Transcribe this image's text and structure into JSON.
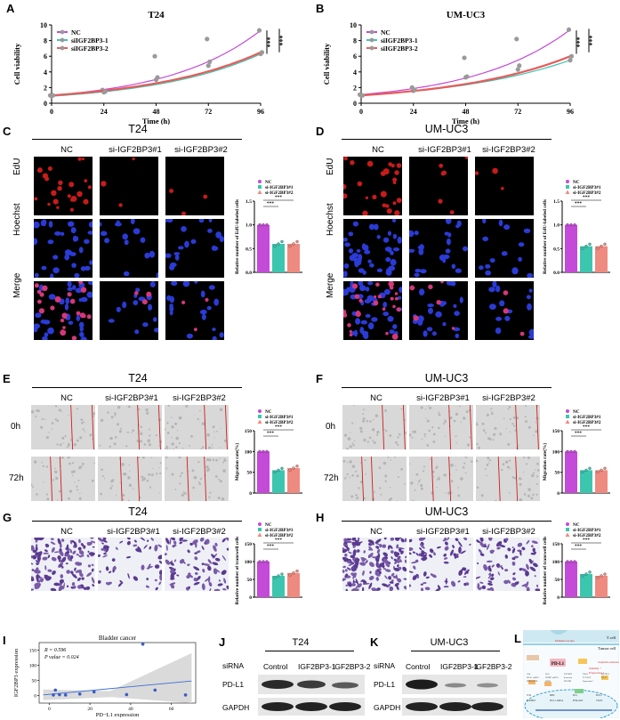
{
  "panels": {
    "A": {
      "letter": "A",
      "title": "T24",
      "xlabel": "Time (h)",
      "ylabel": "Cell viability",
      "legend": [
        "NC",
        "siIGF2BP3-1",
        "siIGF2BP3-2"
      ],
      "sig": [
        "***",
        "***"
      ],
      "xticks": [
        "0",
        "24",
        "48",
        "72",
        "96"
      ],
      "yticks": [
        "0",
        "2",
        "4",
        "6",
        "8",
        "10"
      ]
    },
    "B": {
      "letter": "B",
      "title": "UM-UC3",
      "xlabel": "Time (h)",
      "ylabel": "Cell viability",
      "legend": [
        "NC",
        "siIGF2BP3-1",
        "siIGF2BP3-2"
      ],
      "sig": [
        "***",
        "***"
      ],
      "xticks": [
        "0",
        "24",
        "48",
        "72",
        "96"
      ],
      "yticks": [
        "0",
        "2",
        "4",
        "6",
        "8",
        "10"
      ]
    },
    "C": {
      "letter": "C",
      "title": "T24",
      "cols": [
        "NC",
        "si-IGF2BP3#1",
        "si-IGF2BP3#2"
      ],
      "rows": [
        "EdU",
        "Hoechst",
        "Merge"
      ],
      "ylabel": "Relative number of EdU-labeled cells",
      "legend": [
        "NC",
        "si-IGF2BP3#1",
        "si-IGF2BP3#2"
      ],
      "sig": [
        "***",
        "***"
      ]
    },
    "D": {
      "letter": "D",
      "title": "UM-UC3",
      "cols": [
        "NC",
        "si-IGF2BP3#1",
        "si-IGF2BP3#2"
      ],
      "rows": [
        "EdU",
        "Hoechst",
        "Merge"
      ],
      "ylabel": "Relative number of EdU-labeled cells",
      "legend": [
        "NC",
        "si-IGF2BP3#1",
        "si-IGF2BP3#2"
      ],
      "sig": [
        "***",
        "***"
      ]
    },
    "E": {
      "letter": "E",
      "title": "T24",
      "cols": [
        "NC",
        "si-IGF2BP3#1",
        "si-IGF2BP3#2"
      ],
      "rows": [
        "0h",
        "72h"
      ],
      "ylabel": "Migration rate(%)",
      "legend": [
        "NC",
        "si-IGF2BP3#1",
        "si-IGF2BP3#2"
      ],
      "sig": [
        "***",
        "***"
      ]
    },
    "F": {
      "letter": "F",
      "title": "UM-UC3",
      "cols": [
        "NC",
        "si-IGF2BP3#1",
        "si-IGF2BP3#2"
      ],
      "rows": [
        "0h",
        "72h"
      ],
      "ylabel": "Migration rate(%)",
      "legend": [
        "NC",
        "si-IGF2BP3#1",
        "si-IGF2BP3#2"
      ],
      "sig": [
        "***",
        "***"
      ]
    },
    "G": {
      "letter": "G",
      "title": "T24",
      "cols": [
        "NC",
        "si-IGF2BP3#1",
        "si-IGF2BP3#2"
      ],
      "ylabel": "Relative number of transwell cells",
      "legend": [
        "NC",
        "si-IGF2BP3#1",
        "si-IGF2BP3#2"
      ],
      "sig": [
        "***",
        "***"
      ]
    },
    "H": {
      "letter": "H",
      "title": "UM-UC3",
      "cols": [
        "NC",
        "si-IGF2BP3#1",
        "si-IGF2BP3#2"
      ],
      "ylabel": "Relative number of transwell cells",
      "legend": [
        "NC",
        "si-IGF2BP3#1",
        "si-IGF2BP3#2"
      ],
      "sig": [
        "***",
        "***"
      ]
    },
    "I": {
      "letter": "I",
      "title": "Bladder cancer",
      "r_text": "R = 0.596",
      "p_text": "P value = 0.024",
      "xlabel": "PD−L1 expression",
      "ylabel": "IGF2BP3 expression",
      "xticks": [
        "0",
        "20",
        "40",
        "60"
      ],
      "yticks": [
        "0",
        "50",
        "100",
        "150"
      ]
    },
    "J": {
      "letter": "J",
      "title": "T24",
      "sirna": "siRNA",
      "lanes": [
        "Control",
        "IGF2BP3-1",
        "IGF2BP3-2"
      ],
      "bands": [
        "PD-L1",
        "GAPDH"
      ]
    },
    "K": {
      "letter": "K",
      "title": "UM-UC3",
      "sirna": "siRNA",
      "lanes": [
        "Control",
        "IGF2BP3-1",
        "IGF2BP3-2"
      ],
      "bands": [
        "PD-L1",
        "GAPDH"
      ]
    },
    "L": {
      "letter": "L",
      "tcell": "T cell",
      "tumor": "Tumor cell",
      "pdl1": "PD-L1",
      "immune": "Immune escape",
      "stability": "Stability ↑",
      "expression": "Expression ↑",
      "cisplatin": "cisplatin resistance",
      "labels": [
        "TCR",
        "MHC",
        "PD-1",
        "PD-L1",
        "IGF2BP3",
        "PD-L1 mRNA",
        "PI3K/AKT",
        "STAT3",
        "JAK",
        "RAS",
        "IGF2BP3",
        "UBA2",
        "METTL3",
        "PD-L1 mRNA",
        "TRIM7 mRNA",
        "β-catenin",
        "TCF/LEF",
        "PD-L1",
        "PI3K/mTOR",
        "EZH2",
        "PHGDH",
        "Expression ↑"
      ]
    }
  },
  "chart_data": [
    {
      "panel": "A",
      "type": "line",
      "title": "T24",
      "xlabel": "Time (h)",
      "ylabel": "Cell viability",
      "xlim": [
        0,
        96
      ],
      "ylim": [
        0,
        10
      ],
      "series": [
        {
          "name": "NC",
          "color": "#c44ad8",
          "x": [
            0,
            24,
            48,
            72,
            96
          ],
          "y": [
            1.0,
            1.7,
            6.0,
            8.2,
            9.3
          ]
        },
        {
          "name": "siIGF2BP3-1",
          "color": "#3cc6b0",
          "x": [
            0,
            24,
            48,
            72,
            96
          ],
          "y": [
            0.9,
            1.4,
            3.0,
            4.8,
            6.3
          ]
        },
        {
          "name": "siIGF2BP3-2",
          "color": "#e85a5a",
          "x": [
            0,
            24,
            48,
            72,
            96
          ],
          "y": [
            1.0,
            1.5,
            3.3,
            5.3,
            6.5
          ]
        }
      ]
    },
    {
      "panel": "B",
      "type": "line",
      "title": "UM-UC3",
      "xlabel": "Time (h)",
      "ylabel": "Cell viability",
      "xlim": [
        0,
        96
      ],
      "ylim": [
        0,
        10
      ],
      "series": [
        {
          "name": "NC",
          "color": "#c44ad8",
          "x": [
            0,
            24,
            48,
            72,
            96
          ],
          "y": [
            1.1,
            2.0,
            5.8,
            8.2,
            9.4
          ]
        },
        {
          "name": "siIGF2BP3-1",
          "color": "#3cc6b0",
          "x": [
            0,
            24,
            48,
            72,
            96
          ],
          "y": [
            1.0,
            1.6,
            3.3,
            4.3,
            5.5
          ]
        },
        {
          "name": "siIGF2BP3-2",
          "color": "#e85a5a",
          "x": [
            0,
            24,
            48,
            72,
            96
          ],
          "y": [
            1.0,
            1.7,
            3.4,
            4.8,
            6.0
          ]
        }
      ]
    },
    {
      "panel": "C",
      "type": "bar",
      "ylabel": "Relative number of EdU-labeled cells",
      "ylim": [
        0,
        1.5
      ],
      "categories": [
        "NC",
        "si-IGF2BP3#1",
        "si-IGF2BP3#2"
      ],
      "values": [
        1.0,
        0.6,
        0.6
      ],
      "colors": [
        "#c44ad8",
        "#3cc6b0",
        "#ef8a80"
      ],
      "yticks": [
        "0.0",
        "0.5",
        "1.0",
        "1.5"
      ]
    },
    {
      "panel": "D",
      "type": "bar",
      "ylabel": "Relative number of EdU-labeled cells",
      "ylim": [
        0,
        1.5
      ],
      "categories": [
        "NC",
        "si-IGF2BP3#1",
        "si-IGF2BP3#2"
      ],
      "values": [
        1.0,
        0.55,
        0.55
      ],
      "colors": [
        "#c44ad8",
        "#3cc6b0",
        "#ef8a80"
      ],
      "yticks": [
        "0.0",
        "0.5",
        "1.0",
        "1.5"
      ]
    },
    {
      "panel": "E",
      "type": "bar",
      "ylabel": "Migration rate(%)",
      "ylim": [
        0,
        150
      ],
      "categories": [
        "NC",
        "si-IGF2BP3#1",
        "si-IGF2BP3#2"
      ],
      "values": [
        100,
        55,
        60
      ],
      "colors": [
        "#c44ad8",
        "#3cc6b0",
        "#ef8a80"
      ],
      "yticks": [
        "0",
        "50",
        "100",
        "150"
      ]
    },
    {
      "panel": "F",
      "type": "bar",
      "ylabel": "Migration rate(%)",
      "ylim": [
        0,
        150
      ],
      "categories": [
        "NC",
        "si-IGF2BP3#1",
        "si-IGF2BP3#2"
      ],
      "values": [
        100,
        55,
        55
      ],
      "colors": [
        "#c44ad8",
        "#3cc6b0",
        "#ef8a80"
      ],
      "yticks": [
        "0",
        "50",
        "100",
        "150"
      ]
    },
    {
      "panel": "G",
      "type": "bar",
      "ylabel": "Relative number of transwell cells",
      "ylim": [
        0,
        150
      ],
      "categories": [
        "NC",
        "si-IGF2BP3#1",
        "si-IGF2BP3#2"
      ],
      "values": [
        100,
        60,
        68
      ],
      "colors": [
        "#c44ad8",
        "#3cc6b0",
        "#ef8a80"
      ],
      "yticks": [
        "0",
        "50",
        "100",
        "150"
      ]
    },
    {
      "panel": "H",
      "type": "bar",
      "ylabel": "Relative number of transwell cells",
      "ylim": [
        0,
        150
      ],
      "categories": [
        "NC",
        "si-IGF2BP3#1",
        "si-IGF2BP3#2"
      ],
      "values": [
        100,
        65,
        60
      ],
      "colors": [
        "#c44ad8",
        "#3cc6b0",
        "#ef8a80"
      ],
      "yticks": [
        "0",
        "50",
        "100",
        "150"
      ]
    },
    {
      "panel": "I",
      "type": "scatter",
      "title": "Bladder cancer",
      "xlabel": "PD−L1 expression",
      "ylabel": "IGF2BP3 expression",
      "xlim": [
        -5,
        72
      ],
      "ylim": [
        -25,
        175
      ],
      "points": [
        [
          2,
          2
        ],
        [
          3,
          18
        ],
        [
          5,
          3
        ],
        [
          8,
          2
        ],
        [
          15,
          5
        ],
        [
          22,
          12
        ],
        [
          38,
          3
        ],
        [
          46,
          170
        ],
        [
          52,
          18
        ],
        [
          67,
          2
        ]
      ],
      "fit": [
        [
          -3,
          2
        ],
        [
          70,
          48
        ]
      ]
    }
  ]
}
